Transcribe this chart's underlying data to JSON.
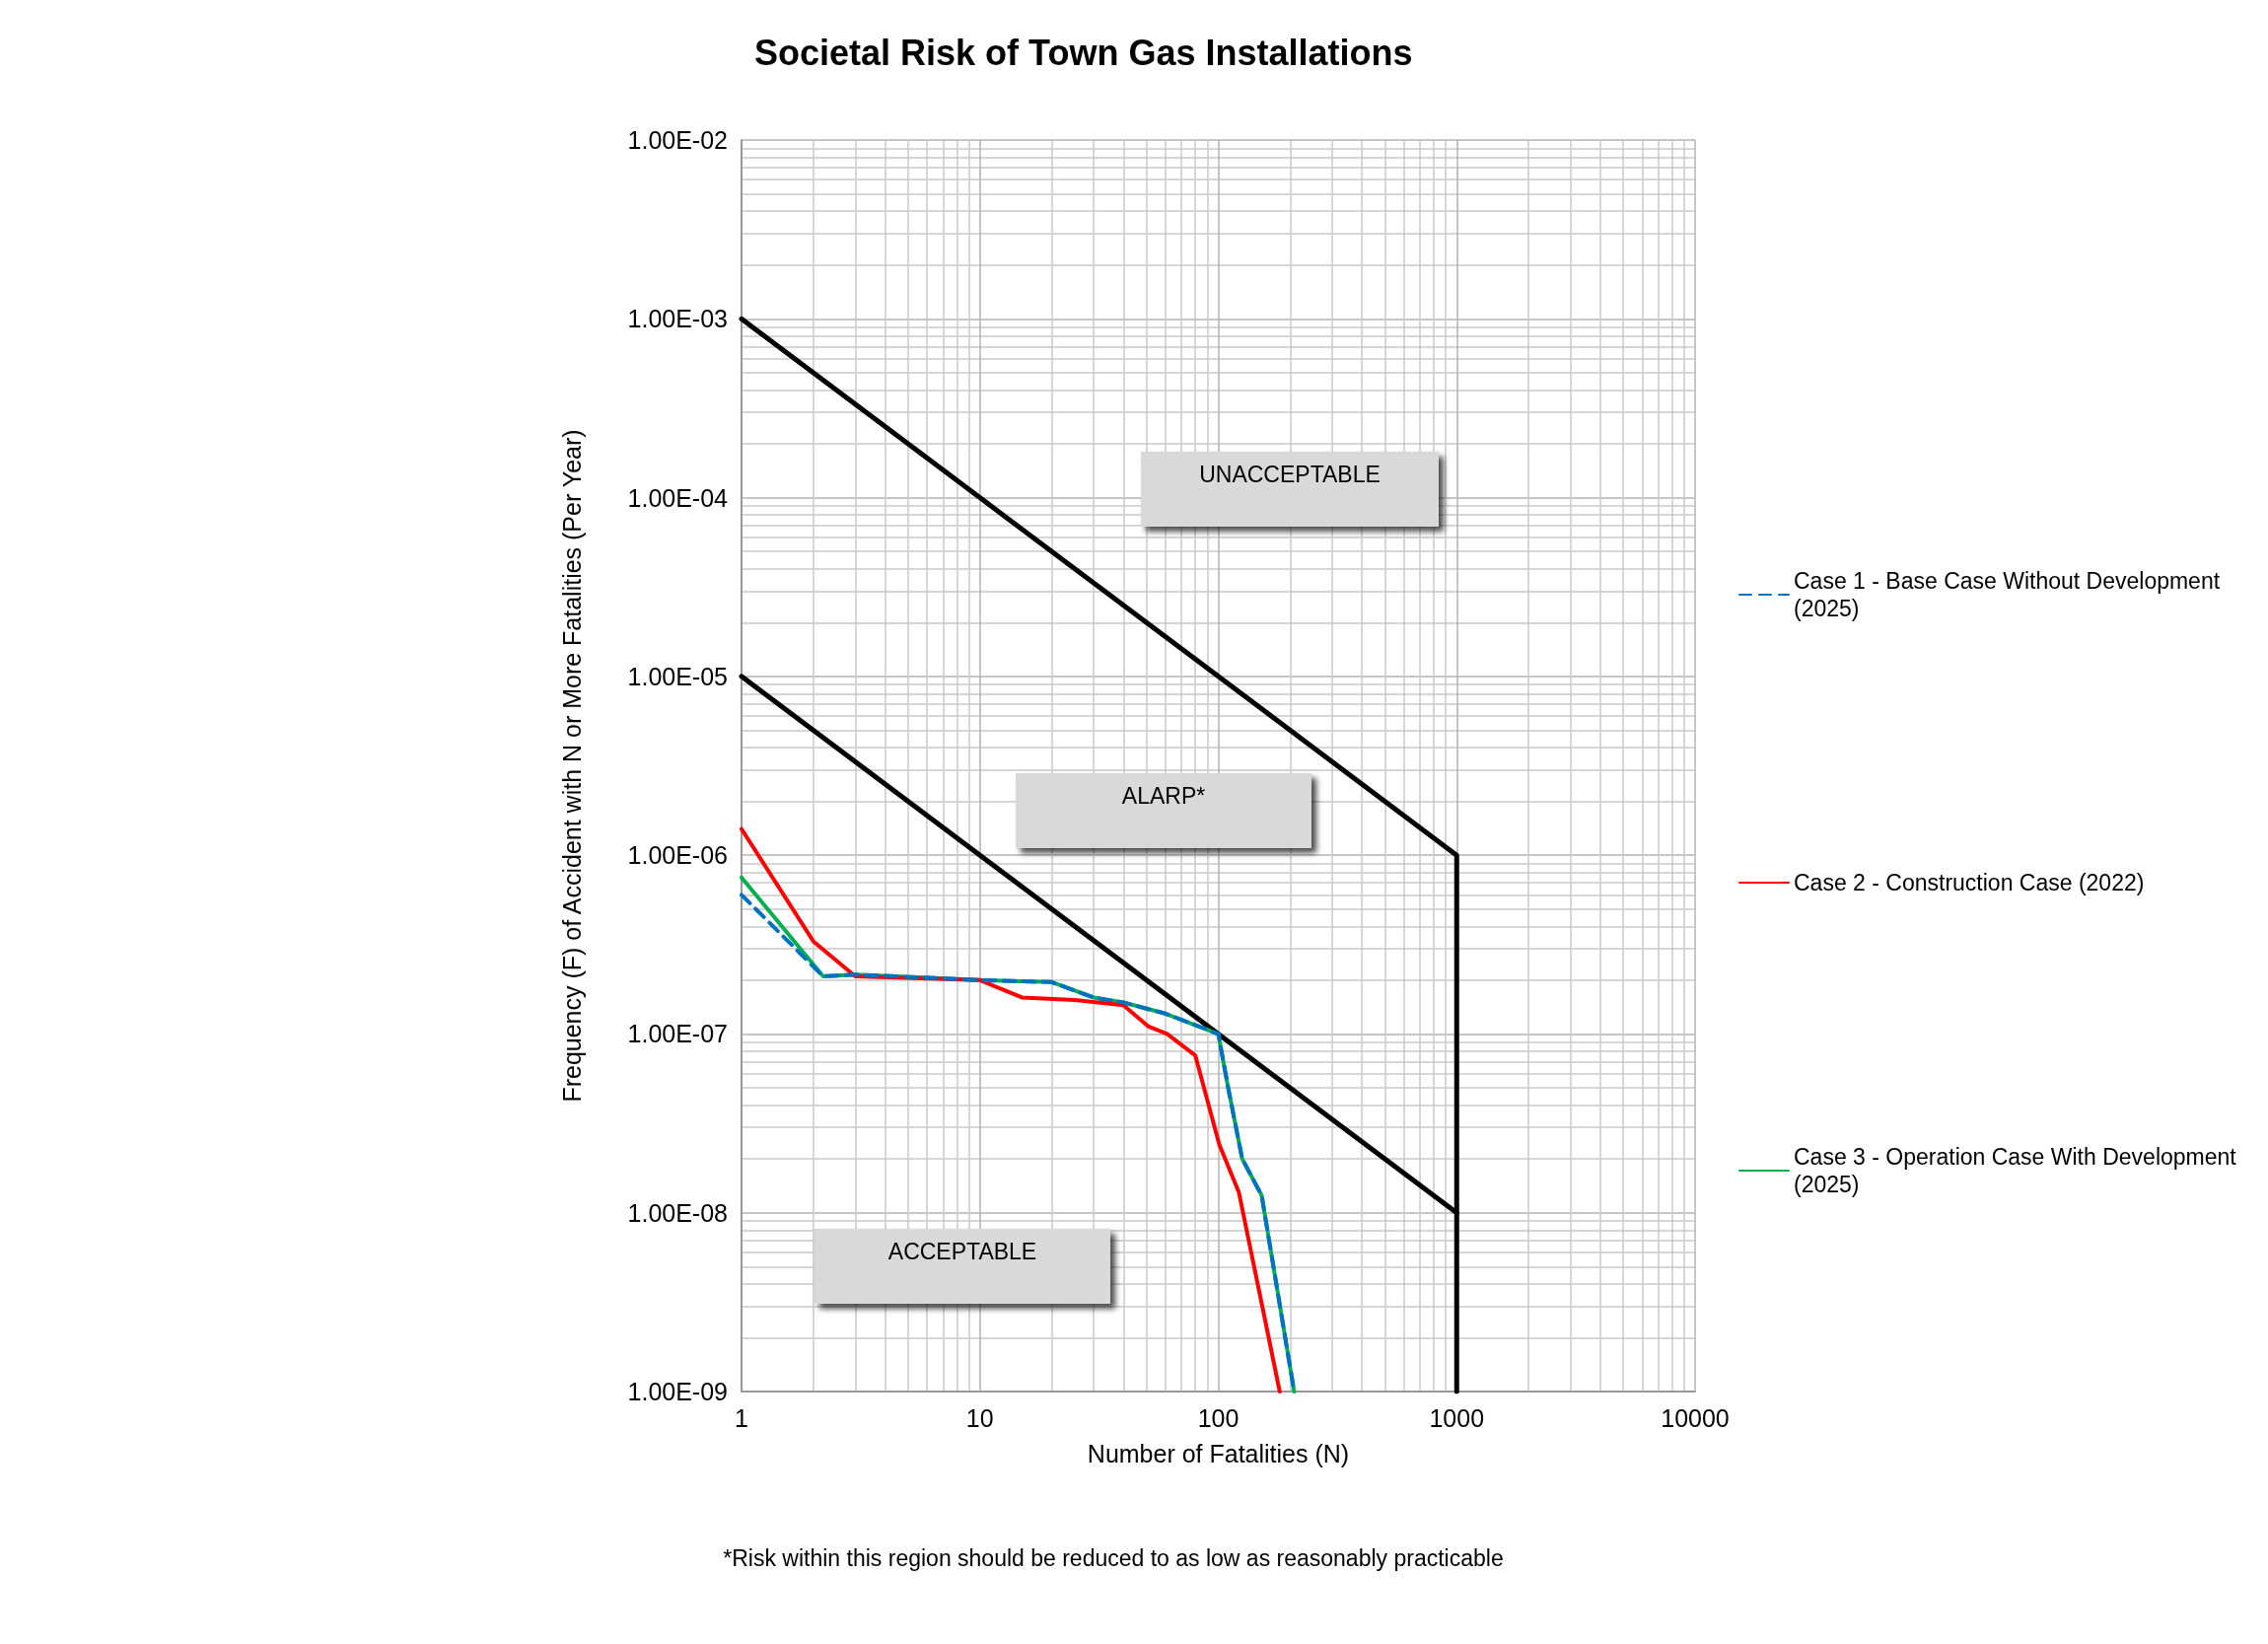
{
  "chart_data": {
    "type": "line",
    "title": "Societal Risk of Town Gas Installations",
    "xlabel": "Number of Fatalities (N)",
    "ylabel": "Frequency (F) of Accident with N or More Fatalities (Per Year)",
    "log": "xy",
    "grid": true,
    "legend": "right",
    "marker": "none",
    "xlim": [
      1,
      10000
    ],
    "xticks": [
      1,
      10,
      100,
      1000,
      10000
    ],
    "ylim": [
      1e-09,
      0.01
    ],
    "yticks": [
      {
        "value": 1e-09,
        "label": "1.00E-09"
      },
      {
        "value": 1e-08,
        "label": "1.00E-08"
      },
      {
        "value": 1e-07,
        "label": "1.00E-07"
      },
      {
        "value": 1e-06,
        "label": "1.00E-06"
      },
      {
        "value": 1e-05,
        "label": "1.00E-05"
      },
      {
        "value": 0.0001,
        "label": "1.00E-04"
      },
      {
        "value": 0.001,
        "label": "1.00E-03"
      },
      {
        "value": 0.01,
        "label": "1.00E-02"
      }
    ],
    "series": [
      {
        "name": "Case 1 - Base Case Without Development (2025)",
        "color": "#0070c0",
        "line_style": "dashed",
        "x": [
          1,
          1.5,
          2.2,
          3,
          10,
          20,
          30,
          40,
          60,
          100,
          110,
          126,
          152,
          208
        ],
        "values": [
          6e-07,
          3.5e-07,
          2.1e-07,
          2.15e-07,
          2e-07,
          1.95e-07,
          1.6e-07,
          1.5e-07,
          1.3e-07,
          1e-07,
          5e-08,
          2e-08,
          1.25e-08,
          1e-09
        ]
      },
      {
        "name": "Case 2 - Construction Case (2022)",
        "color": "#ff0000",
        "line_style": "solid",
        "x": [
          1,
          2,
          3,
          10,
          15,
          25,
          40,
          51,
          61,
          80,
          101,
          122,
          181
        ],
        "values": [
          1.4e-06,
          3.3e-07,
          2.1e-07,
          2e-07,
          1.6e-07,
          1.55e-07,
          1.45e-07,
          1.1e-07,
          1e-07,
          7.6e-08,
          2.4e-08,
          1.3e-08,
          1e-09
        ]
      },
      {
        "name": "Case 3 - Operation Case With Development (2025)",
        "color": "#00b050",
        "line_style": "solid",
        "x": [
          1,
          2.2,
          3,
          10,
          20,
          30,
          40,
          60,
          100,
          110,
          126,
          152,
          208
        ],
        "values": [
          7.5e-07,
          2.1e-07,
          2.15e-07,
          2e-07,
          1.95e-07,
          1.6e-07,
          1.5e-07,
          1.3e-07,
          1e-07,
          5e-08,
          2e-08,
          1.25e-08,
          1e-09
        ]
      },
      {
        "color": "#000000",
        "line_style": "solid",
        "x": [
          1,
          1000,
          1000
        ],
        "values": [
          0.001,
          1e-06,
          1e-09
        ]
      },
      {
        "color": "#000000",
        "line_style": "solid",
        "x": [
          1,
          1000
        ],
        "values": [
          1e-05,
          1e-08
        ]
      }
    ],
    "annotations": [
      "UNACCEPTABLE",
      "ALARP*",
      "ACCEPTABLE",
      "*Risk within this region should be reduced to as low as reasonably practicable"
    ]
  }
}
